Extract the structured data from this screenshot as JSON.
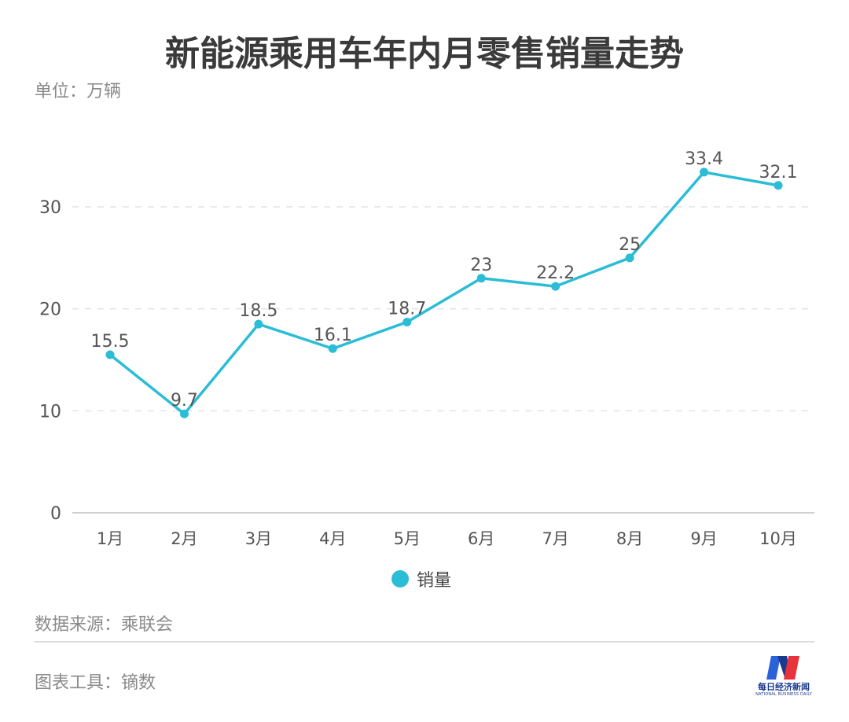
{
  "chart_data": {
    "type": "line",
    "title": "新能源乘用车年内月零售销量走势",
    "unit_label": "单位：万辆",
    "categories": [
      "1月",
      "2月",
      "3月",
      "4月",
      "5月",
      "6月",
      "7月",
      "8月",
      "9月",
      "10月"
    ],
    "series": [
      {
        "name": "销量",
        "values": [
          15.5,
          9.7,
          18.5,
          16.1,
          18.7,
          23,
          22.2,
          25,
          33.4,
          32.1
        ],
        "color": "#2bbdd6"
      }
    ],
    "data_labels": [
      "15.5",
      "9.7",
      "18.5",
      "16.1",
      "18.7",
      "23",
      "22.2",
      "25",
      "33.4",
      "32.1"
    ],
    "ylim": [
      0,
      35
    ],
    "yticks": [
      "0",
      "10",
      "20",
      "30"
    ],
    "ytick_values": [
      0,
      10,
      20,
      30
    ],
    "grid": true,
    "legend": "bottom"
  },
  "footer": {
    "source": "数据来源：乘联会",
    "tool": "图表工具：镝数",
    "logo_text": "每日经济新闻",
    "logo_sub": "NATIONAL BUSINESS DAILY"
  }
}
